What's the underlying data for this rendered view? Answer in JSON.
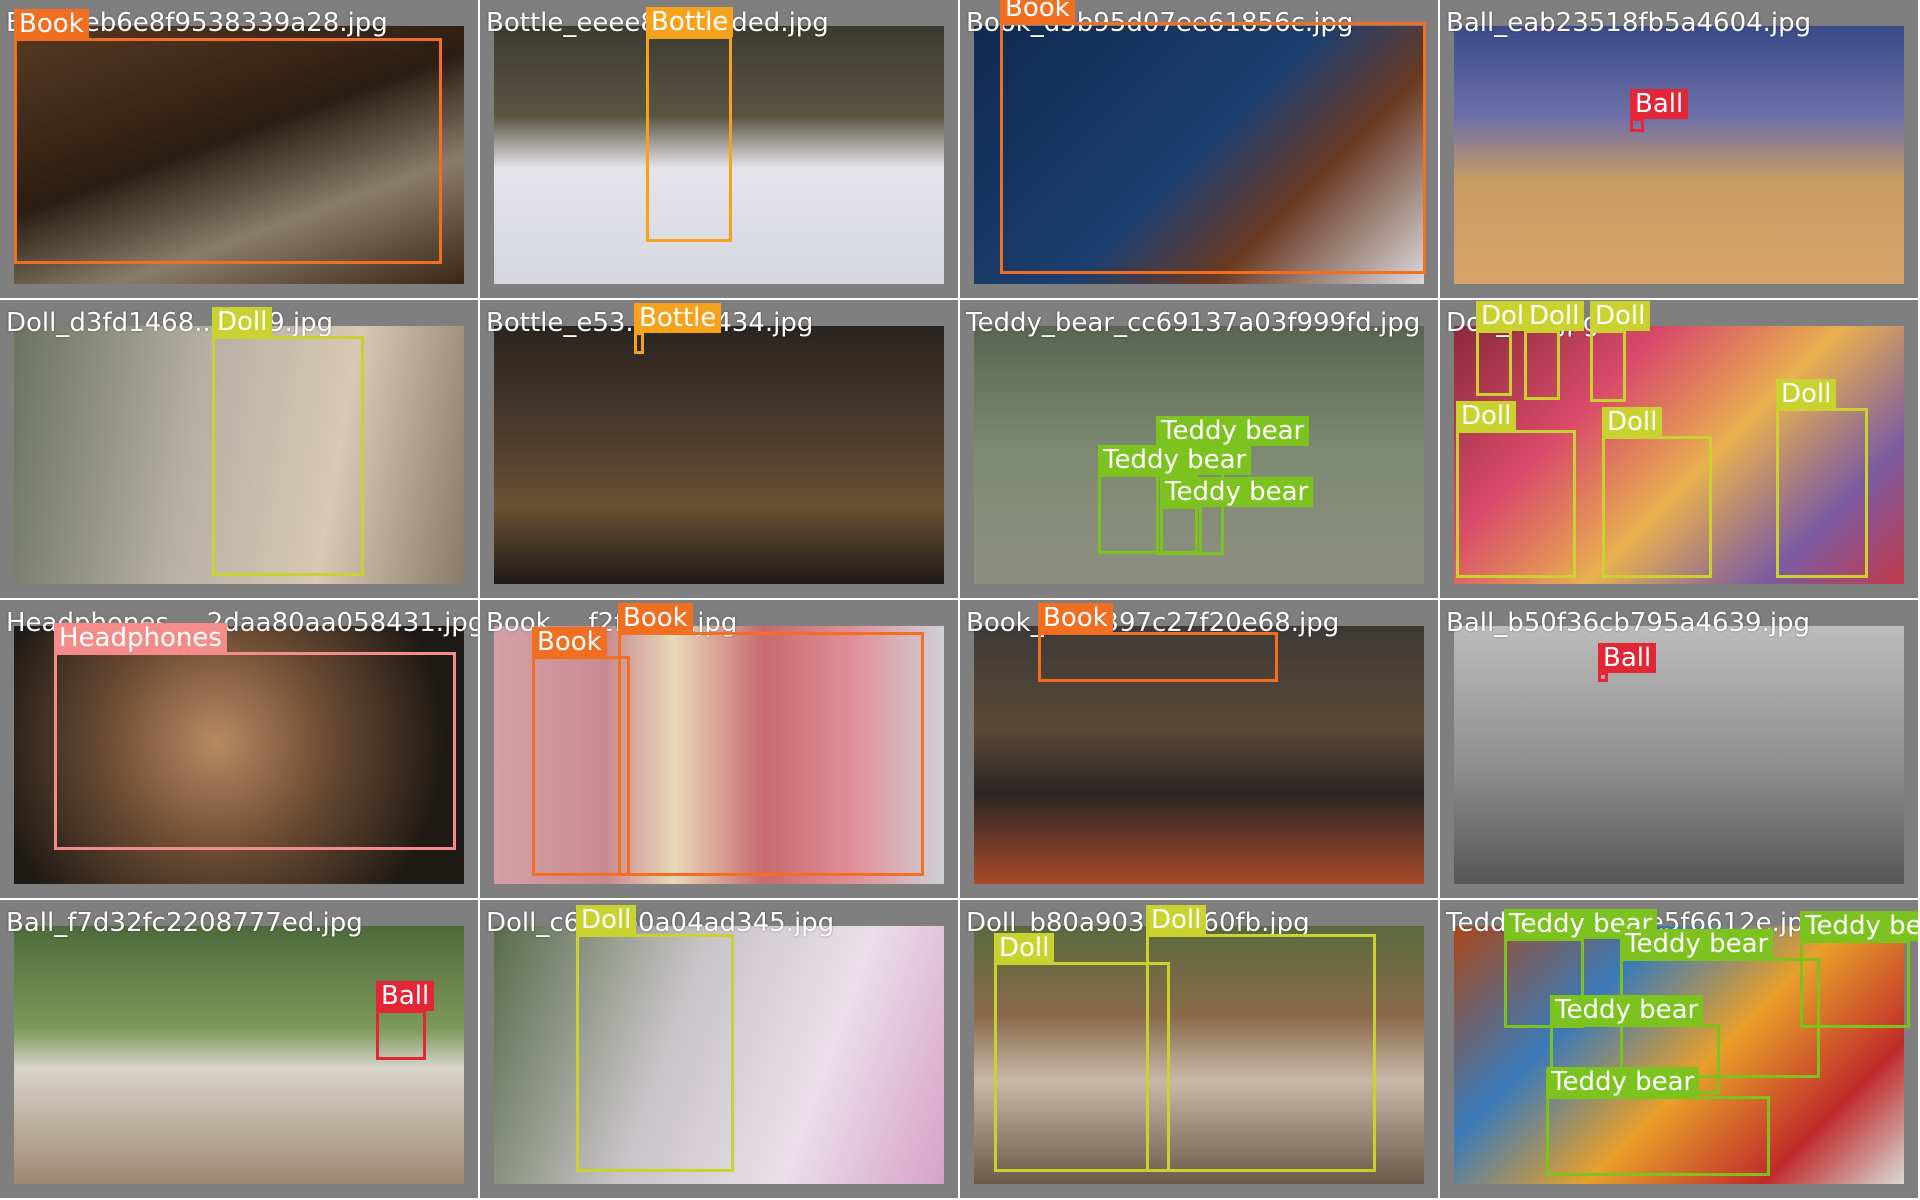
{
  "colors": {
    "Book": "#f26f21",
    "Bottle": "#f6a21d",
    "Ball": "#e32636",
    "Doll": "#c9d22f",
    "Teddy bear": "#7cc31f",
    "Headphones": "#f48c8c"
  },
  "cells": [
    {
      "filename": "Book_eb6e8f9538339a28.jpg",
      "detections": [
        {
          "label": "Book"
        }
      ]
    },
    {
      "filename": "Bottle_eeee81...21ded.jpg",
      "detections": [
        {
          "label": "Bottle"
        }
      ]
    },
    {
      "filename": "Book_d5b95d07ee61856c.jpg",
      "detections": [
        {
          "label": "Book"
        }
      ]
    },
    {
      "filename": "Ball_eab23518fb5a4604.jpg",
      "detections": [
        {
          "label": "Ball"
        }
      ]
    },
    {
      "filename": "Doll_d3fd1468...71e9.jpg",
      "detections": [
        {
          "label": "Doll"
        }
      ]
    },
    {
      "filename": "Bottle_e53...e97a434.jpg",
      "detections": [
        {
          "label": "Bottle"
        }
      ]
    },
    {
      "filename": "Teddy_bear_cc69137a03f999fd.jpg",
      "detections": [
        {
          "label": "Teddy bear"
        },
        {
          "label": "Teddy bear"
        },
        {
          "label": "Teddy bear"
        }
      ]
    },
    {
      "filename": "Doll_...3.jpg",
      "detections": [
        {
          "label": "Doll"
        },
        {
          "label": "Doll"
        },
        {
          "label": "Doll"
        },
        {
          "label": "Doll"
        },
        {
          "label": "Doll"
        },
        {
          "label": "Doll"
        }
      ]
    },
    {
      "filename": "Headphones_...2daa80aa058431.jpg",
      "detections": [
        {
          "label": "Headphones"
        }
      ]
    },
    {
      "filename": "Book_...f2fd7e6.jpg",
      "detections": [
        {
          "label": "Book"
        },
        {
          "label": "Book"
        }
      ]
    },
    {
      "filename": "Book_b2fb397c27f20e68.jpg",
      "detections": [
        {
          "label": "Book"
        }
      ]
    },
    {
      "filename": "Ball_b50f36cb795a4639.jpg",
      "detections": [
        {
          "label": "Ball"
        }
      ]
    },
    {
      "filename": "Ball_f7d32fc2208777ed.jpg",
      "detections": [
        {
          "label": "Ball"
        }
      ]
    },
    {
      "filename": "Doll_c6...4b0a04ad345.jpg",
      "detections": [
        {
          "label": "Doll"
        }
      ]
    },
    {
      "filename": "Doll_b80a90333...60fb.jpg",
      "detections": [
        {
          "label": "Doll"
        },
        {
          "label": "Doll"
        }
      ]
    },
    {
      "filename": "Teddy_bear_...ee5f6612e.jpg",
      "detections": [
        {
          "label": "Teddy bear"
        },
        {
          "label": "Teddy bear"
        },
        {
          "label": "Teddy bear"
        },
        {
          "label": "Teddy bear"
        },
        {
          "label": "Teddy bear"
        }
      ]
    }
  ]
}
